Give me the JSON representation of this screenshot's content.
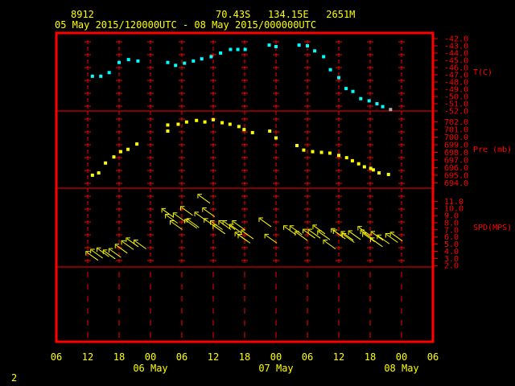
{
  "header": {
    "station_id": "8912",
    "location": "70.43S   134.15E   2651M",
    "time_range": "05 May 2015/120000UTC - 08 May 2015/000000UTC"
  },
  "footer": {
    "page_number": "2"
  },
  "colors": {
    "frame": "#ff0000",
    "text": "#ffff00",
    "temperature": "#00ffff",
    "pressure": "#ffff00",
    "wind": "#ffff00",
    "hour_marker": "#ff0000",
    "last_temp_point": "#b0b0b0"
  },
  "chart_data": {
    "type": "scatter",
    "x_unit": "hours since 05 May 2015 06:00 UTC",
    "x_range": [
      0,
      72
    ],
    "x_tick_labels": [
      "06",
      "12",
      "18",
      "00",
      "06",
      "12",
      "18",
      "00",
      "06",
      "12",
      "18",
      "00",
      "06"
    ],
    "x_day_labels": [
      {
        "label": "06 May",
        "hour": 18
      },
      {
        "label": "07 May",
        "hour": 42
      },
      {
        "label": "08 May",
        "hour": 66
      }
    ],
    "panels": [
      {
        "name": "T(C)",
        "ylim": [
          -52,
          -42
        ],
        "ticks": [
          "-42.0",
          "-43.0",
          "-44.0",
          "-45.0",
          "-46.0",
          "-47.0",
          "-48.0",
          "-49.0",
          "-50.0",
          "-51.0",
          "-52.0"
        ],
        "points": [
          [
            6.9,
            -47.2
          ],
          [
            8.5,
            -47.2
          ],
          [
            10.1,
            -46.7
          ],
          [
            12.0,
            -45.3
          ],
          [
            13.8,
            -44.9
          ],
          [
            15.6,
            -45.1
          ],
          [
            21.3,
            -45.3
          ],
          [
            22.8,
            -45.7
          ],
          [
            24.5,
            -45.4
          ],
          [
            26.2,
            -45.1
          ],
          [
            27.8,
            -44.8
          ],
          [
            29.6,
            -44.5
          ],
          [
            31.4,
            -44.0
          ],
          [
            33.3,
            -43.5
          ],
          [
            34.7,
            -43.5
          ],
          [
            36.1,
            -43.5
          ],
          [
            40.7,
            -42.9
          ],
          [
            42.0,
            -43.1
          ],
          [
            46.4,
            -42.9
          ],
          [
            48.0,
            -43.0
          ],
          [
            49.4,
            -43.7
          ],
          [
            51.1,
            -44.5
          ],
          [
            52.4,
            -46.3
          ],
          [
            54.0,
            -47.4
          ],
          [
            55.4,
            -48.9
          ],
          [
            56.7,
            -49.3
          ],
          [
            58.2,
            -50.3
          ],
          [
            59.8,
            -50.6
          ],
          [
            61.3,
            -51.0
          ],
          [
            62.4,
            -51.4
          ],
          [
            63.9,
            -51.8
          ]
        ],
        "highlight_last_point": true
      },
      {
        "name": "Pre (mb)",
        "ylim": [
          693.4,
          702.6
        ],
        "ticks": [
          "702.0",
          "701.0",
          "700.0",
          "699.0",
          "698.0",
          "697.0",
          "696.0",
          "695.0",
          "694.0"
        ],
        "points": [
          [
            6.9,
            695.0
          ],
          [
            8.1,
            695.3
          ],
          [
            9.4,
            696.6
          ],
          [
            11.0,
            697.4
          ],
          [
            12.3,
            698.1
          ],
          [
            13.7,
            698.4
          ],
          [
            15.4,
            699.1
          ],
          [
            21.3,
            701.6
          ],
          [
            21.3,
            700.8
          ],
          [
            23.3,
            701.7
          ],
          [
            24.9,
            702.0
          ],
          [
            26.8,
            702.2
          ],
          [
            28.4,
            702.0
          ],
          [
            30.0,
            702.3
          ],
          [
            31.7,
            701.9
          ],
          [
            33.2,
            701.7
          ],
          [
            34.9,
            701.4
          ],
          [
            35.9,
            701.0
          ],
          [
            37.5,
            700.6
          ],
          [
            40.8,
            700.8
          ],
          [
            42.0,
            699.9
          ],
          [
            46.0,
            698.9
          ],
          [
            47.3,
            698.3
          ],
          [
            49.0,
            698.1
          ],
          [
            50.7,
            698.0
          ],
          [
            52.3,
            697.9
          ],
          [
            54.0,
            697.6
          ],
          [
            55.5,
            697.3
          ],
          [
            56.6,
            696.9
          ],
          [
            57.8,
            696.5
          ],
          [
            58.9,
            696.1
          ],
          [
            60.1,
            695.9
          ],
          [
            60.6,
            695.7
          ],
          [
            61.7,
            695.3
          ],
          [
            63.5,
            695.1
          ]
        ]
      },
      {
        "name": "SPD(MPS)",
        "ylim": [
          1.8,
          11.6
        ],
        "ticks": [
          "11.0",
          "10.0",
          "9.0",
          "8.0",
          "7.0",
          "6.0",
          "5.0",
          "4.0",
          "3.0",
          "2.0"
        ],
        "points": [
          [
            6.9,
            3.3
          ],
          [
            7.8,
            3.6
          ],
          [
            9.0,
            3.8
          ],
          [
            10.2,
            3.5
          ],
          [
            11.3,
            3.7
          ],
          [
            12.5,
            4.3
          ],
          [
            13.7,
            4.8
          ],
          [
            14.6,
            5.2
          ],
          [
            16.1,
            4.9
          ],
          [
            21.4,
            9.3
          ],
          [
            22.1,
            8.5
          ],
          [
            23.0,
            7.6
          ],
          [
            23.6,
            8.7
          ],
          [
            25.0,
            9.6
          ],
          [
            25.8,
            7.8
          ],
          [
            26.2,
            7.9
          ],
          [
            27.7,
            8.8
          ],
          [
            28.3,
            11.3
          ],
          [
            29.2,
            9.4
          ],
          [
            29.5,
            7.9
          ],
          [
            30.7,
            7.6
          ],
          [
            31.2,
            7.0
          ],
          [
            32.3,
            7.6
          ],
          [
            33.1,
            7.6
          ],
          [
            34.4,
            7.1
          ],
          [
            34.9,
            7.6
          ],
          [
            35.4,
            6.0
          ],
          [
            36.0,
            5.7
          ],
          [
            36.6,
            6.3
          ],
          [
            40.0,
            8.0
          ],
          [
            41.1,
            5.7
          ],
          [
            44.7,
            6.9
          ],
          [
            45.9,
            6.9
          ],
          [
            46.9,
            6.1
          ],
          [
            48.4,
            6.4
          ],
          [
            49.4,
            6.4
          ],
          [
            50.3,
            7.0
          ],
          [
            51.2,
            6.2
          ],
          [
            52.3,
            4.9
          ],
          [
            53.8,
            6.5
          ],
          [
            54.2,
            6.3
          ],
          [
            55.7,
            6.1
          ],
          [
            55.9,
            5.8
          ],
          [
            57.1,
            6.2
          ],
          [
            58.9,
            6.8
          ],
          [
            59.4,
            6.3
          ],
          [
            59.8,
            5.9
          ],
          [
            61.3,
            5.2
          ],
          [
            61.4,
            6.1
          ],
          [
            62.6,
            5.6
          ],
          [
            64.2,
            5.8
          ],
          [
            65.1,
            6.0
          ]
        ]
      }
    ]
  }
}
